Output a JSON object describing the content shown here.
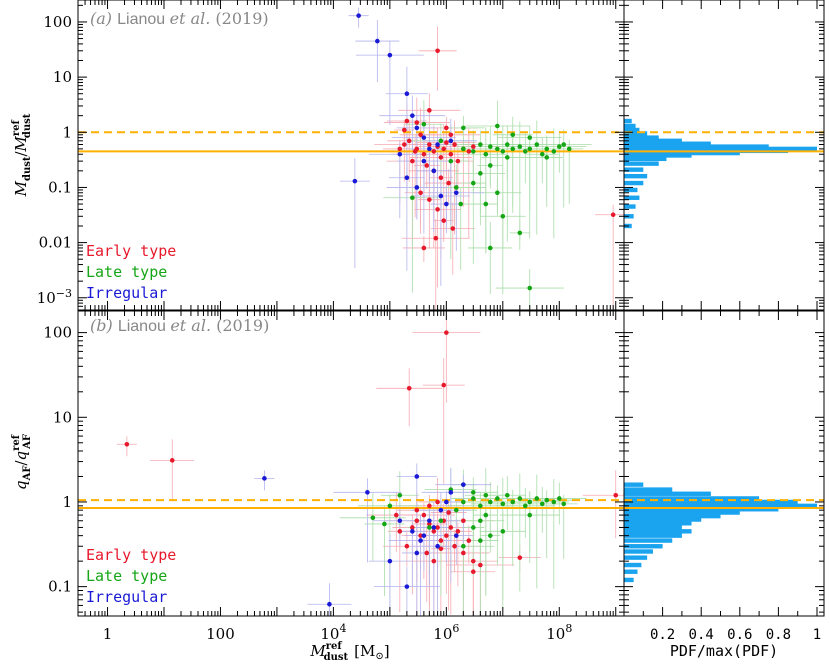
{
  "figure": {
    "xlabel_main": "M",
    "xlabel_sup": "ref",
    "xlabel_sub": "dust",
    "xlabel_unit": "[M",
    "xlabel_unit_sub": "⊙",
    "xlabel_unit_end": "]",
    "right_xlabel": "PDF/max(PDF)"
  },
  "panel_a": {
    "label_prefix": "(a) ",
    "label_name": "Lianou ",
    "label_etal": "et al.",
    "label_year": " (2019)",
    "ylabel_num": "M",
    "ylabel_num_sub": "dust",
    "ylabel_den": "M",
    "ylabel_den_sup": "ref",
    "ylabel_den_sub": "dust",
    "y_ticks": [
      {
        "v": 100,
        "label": "100"
      },
      {
        "v": 10,
        "label": "10"
      },
      {
        "v": 1,
        "label": "1"
      },
      {
        "v": 0.1,
        "label": "0.1"
      },
      {
        "v": 0.01,
        "label": "0.01"
      },
      {
        "v": 0.001,
        "label_base": "10",
        "label_exp": "−3"
      }
    ],
    "legend": [
      {
        "label": "Early type",
        "color": "#e8192c"
      },
      {
        "label": "Late type",
        "color": "#14a614"
      },
      {
        "label": "Irregular",
        "color": "#1a1ad6"
      }
    ]
  },
  "panel_b": {
    "label_prefix": "(b) ",
    "label_name": "Lianou ",
    "label_etal": "et al.",
    "label_year": " (2019)",
    "ylabel_num": "q",
    "ylabel_num_sub": "AF",
    "ylabel_den": "q",
    "ylabel_den_sup": "ref",
    "ylabel_den_sub": "AF",
    "y_ticks": [
      {
        "v": 100,
        "label": "100"
      },
      {
        "v": 10,
        "label": "10"
      },
      {
        "v": 1,
        "label": "1"
      },
      {
        "v": 0.1,
        "label": "0.1"
      }
    ],
    "legend": [
      {
        "label": "Early type",
        "color": "#e8192c"
      },
      {
        "label": "Late type",
        "color": "#14a614"
      },
      {
        "label": "Irregular",
        "color": "#1a1ad6"
      }
    ]
  },
  "x_ticks": [
    {
      "v": 1,
      "label": "1"
    },
    {
      "v": 100,
      "label": "100"
    },
    {
      "v": 10000,
      "label_base": "10",
      "label_exp": "4"
    },
    {
      "v": 1000000,
      "label_base": "10",
      "label_exp": "6"
    },
    {
      "v": 100000000,
      "label_base": "10",
      "label_exp": "8"
    }
  ],
  "pdf_ticks": [
    {
      "v": 0.2,
      "label": "0.2"
    },
    {
      "v": 0.4,
      "label": "0.4"
    },
    {
      "v": 0.6,
      "label": "0.6"
    },
    {
      "v": 0.8,
      "label": "0.8"
    },
    {
      "v": 1.0,
      "label": "1"
    }
  ],
  "chart_data": [
    {
      "type": "scatter",
      "panel": "a",
      "xscale": "log",
      "yscale": "log",
      "xlim": [
        0.3,
        1400000000.0
      ],
      "ylim": [
        0.0006,
        250
      ],
      "colors": {
        "early": "#e8192c",
        "late": "#14a614",
        "irregular": "#1a1ad6",
        "hline_solid": "#ffb000",
        "hline_dashed": "#ffb000"
      },
      "hlines": [
        {
          "y": 0.45,
          "style": "solid"
        },
        {
          "y": 1.0,
          "style": "dashed"
        }
      ],
      "series": [
        {
          "name": "Early type",
          "points": [
            [
              180000.0,
              1.1
            ],
            [
              220000.0,
              0.7
            ],
            [
              300000.0,
              0.5
            ],
            [
              350000.0,
              0.9
            ],
            [
              400000.0,
              0.4
            ],
            [
              500000.0,
              0.6
            ],
            [
              600000.0,
              0.45
            ],
            [
              700000.0,
              0.55
            ],
            [
              800000.0,
              0.35
            ],
            [
              900000.0,
              0.5
            ],
            [
              1000000.0,
              0.65
            ],
            [
              1200000.0,
              0.4
            ],
            [
              1400000.0,
              0.6
            ],
            [
              1600000.0,
              0.3
            ],
            [
              2000000.0,
              0.5
            ],
            [
              2500000.0,
              0.45
            ],
            [
              3000000.0,
              0.55
            ],
            [
              150000.0,
              0.5
            ],
            [
              250000.0,
              0.3
            ],
            [
              450000.0,
              0.25
            ],
            [
              600000.0,
              0.2
            ],
            [
              800000.0,
              0.15
            ],
            [
              1100000.0,
              0.12
            ],
            [
              500000.0,
              0.06
            ],
            [
              700000.0,
              0.04
            ],
            [
              900000.0,
              0.025
            ],
            [
              1300000.0,
              0.018
            ],
            [
              650000.0,
              0.012
            ],
            [
              400000.0,
              0.008
            ],
            [
              300000.0,
              1.5
            ],
            [
              200000.0,
              1.6
            ],
            [
              1000000.0,
              1.2
            ],
            [
              700000.0,
              30
            ],
            [
              500000.0,
              2.5
            ],
            [
              900000000.0,
              0.032
            ],
            [
              180000.0,
              0.6
            ],
            [
              280000.0,
              0.45
            ],
            [
              1200000.0,
              0.9
            ],
            [
              350000.0,
              0.08
            ]
          ]
        },
        {
          "name": "Late type",
          "points": [
            [
              2000000.0,
              0.5
            ],
            [
              3000000.0,
              0.45
            ],
            [
              4000000.0,
              0.6
            ],
            [
              5000000.0,
              0.4
            ],
            [
              6000000.0,
              0.55
            ],
            [
              8000000.0,
              0.5
            ],
            [
              10000000.0,
              0.45
            ],
            [
              12000000.0,
              0.6
            ],
            [
              15000000.0,
              0.5
            ],
            [
              20000000.0,
              0.55
            ],
            [
              25000000.0,
              0.45
            ],
            [
              30000000.0,
              0.5
            ],
            [
              40000000.0,
              0.6
            ],
            [
              50000000.0,
              0.4
            ],
            [
              60000000.0,
              0.5
            ],
            [
              80000000.0,
              0.45
            ],
            [
              100000000.0,
              0.55
            ],
            [
              150000000.0,
              0.5
            ],
            [
              12000000.0,
              0.35
            ],
            [
              6000000.0,
              0.25
            ],
            [
              4000000.0,
              0.18
            ],
            [
              3000000.0,
              0.12
            ],
            [
              8000000.0,
              0.08
            ],
            [
              5000000.0,
              0.05
            ],
            [
              10000000.0,
              0.03
            ],
            [
              20000000.0,
              0.015
            ],
            [
              6000000.0,
              0.008
            ],
            [
              30000000.0,
              0.0015
            ],
            [
              2000000.0,
              1.2
            ],
            [
              8000000.0,
              1.3
            ],
            [
              15000000.0,
              0.9
            ],
            [
              30000000.0,
              0.8
            ],
            [
              400000.0,
              1.4
            ],
            [
              800000.0,
              0.7
            ],
            [
              1200000.0,
              0.3
            ],
            [
              1500000.0,
              0.1
            ],
            [
              1800000.0,
              0.05
            ],
            [
              250000.0,
              0.065
            ],
            [
              60000000.0,
              0.35
            ],
            [
              120000000.0,
              0.6
            ]
          ]
        },
        {
          "name": "Irregular",
          "points": [
            [
              28000.0,
              130
            ],
            [
              60000.0,
              45
            ],
            [
              100000.0,
              25
            ],
            [
              200000.0,
              5
            ],
            [
              250000.0,
              2
            ],
            [
              300000.0,
              1.2
            ],
            [
              400000.0,
              0.8
            ],
            [
              500000.0,
              0.5
            ],
            [
              150000.0,
              0.4
            ],
            [
              200000.0,
              0.15
            ],
            [
              300000.0,
              0.1
            ],
            [
              600000.0,
              0.2
            ],
            [
              800000.0,
              0.07
            ],
            [
              1000000.0,
              0.05
            ],
            [
              1500000.0,
              0.08
            ],
            [
              24000.0,
              0.13
            ],
            [
              400000.0,
              0.3
            ],
            [
              700000.0,
              0.6
            ],
            [
              1200000.0,
              0.7
            ]
          ]
        }
      ],
      "histogram": {
        "type": "bar",
        "orientation": "horizontal",
        "bins_y": [
          0.02,
          0.03,
          0.045,
          0.065,
          0.09,
          0.12,
          0.16,
          0.21,
          0.27,
          0.33,
          0.38,
          0.42,
          0.46,
          0.5,
          0.55,
          0.62,
          0.7,
          0.8,
          0.95,
          1.1,
          1.3,
          1.6
        ],
        "values": [
          0.04,
          0.05,
          0.06,
          0.08,
          0.07,
          0.1,
          0.12,
          0.1,
          0.18,
          0.22,
          0.35,
          0.6,
          0.85,
          1.0,
          0.75,
          0.45,
          0.3,
          0.18,
          0.12,
          0.08,
          0.06,
          0.04
        ]
      }
    },
    {
      "type": "scatter",
      "panel": "b",
      "xscale": "log",
      "yscale": "log",
      "xlim": [
        0.3,
        1400000000.0
      ],
      "ylim": [
        0.045,
        180
      ],
      "colors": {
        "early": "#e8192c",
        "late": "#14a614",
        "irregular": "#1a1ad6",
        "hline_solid": "#ffb000",
        "hline_dashed": "#ffb000"
      },
      "hlines": [
        {
          "y": 0.85,
          "style": "solid"
        },
        {
          "y": 1.05,
          "style": "dashed"
        }
      ],
      "series": [
        {
          "name": "Early type",
          "points": [
            [
              2.2,
              4.8
            ],
            [
              14,
              3.1
            ],
            [
              1000000.0,
              100
            ],
            [
              900000.0,
              24
            ],
            [
              220000.0,
              22
            ],
            [
              250000.0,
              0.5
            ],
            [
              300000.0,
              0.6
            ],
            [
              350000.0,
              0.4
            ],
            [
              400000.0,
              0.7
            ],
            [
              500000.0,
              0.55
            ],
            [
              600000.0,
              0.45
            ],
            [
              700000.0,
              0.5
            ],
            [
              800000.0,
              0.35
            ],
            [
              900000.0,
              0.6
            ],
            [
              1000000.0,
              0.4
            ],
            [
              1200000.0,
              0.5
            ],
            [
              1400000.0,
              0.3
            ],
            [
              1600000.0,
              0.45
            ],
            [
              2000000.0,
              0.25
            ],
            [
              2500000.0,
              0.35
            ],
            [
              3000000.0,
              0.2
            ],
            [
              150000.0,
              0.45
            ],
            [
              200000.0,
              0.3
            ],
            [
              450000.0,
              0.25
            ],
            [
              600000.0,
              0.2
            ],
            [
              800000.0,
              0.28
            ],
            [
              3000000.0,
              0.15
            ],
            [
              4000000.0,
              0.18
            ],
            [
              20000000.0,
              0.22
            ],
            [
              1000000000.0,
              1.2
            ],
            [
              300000.0,
              0.8
            ],
            [
              500000.0,
              0.9
            ],
            [
              700000.0,
              1.0
            ],
            [
              2000000.0,
              0.6
            ],
            [
              1100000.0,
              0.75
            ],
            [
              130000.0,
              0.7
            ]
          ]
        },
        {
          "name": "Late type",
          "points": [
            [
              2000000.0,
              1.0
            ],
            [
              3000000.0,
              1.1
            ],
            [
              4000000.0,
              0.9
            ],
            [
              5000000.0,
              1.2
            ],
            [
              6000000.0,
              1.0
            ],
            [
              8000000.0,
              1.1
            ],
            [
              10000000.0,
              0.95
            ],
            [
              12000000.0,
              1.2
            ],
            [
              15000000.0,
              1.0
            ],
            [
              20000000.0,
              1.1
            ],
            [
              25000000.0,
              0.9
            ],
            [
              30000000.0,
              1.0
            ],
            [
              40000000.0,
              1.1
            ],
            [
              50000000.0,
              0.95
            ],
            [
              60000000.0,
              1.05
            ],
            [
              80000000.0,
              1.0
            ],
            [
              100000000.0,
              1.1
            ],
            [
              120000000.0,
              0.95
            ],
            [
              1200000.0,
              1.4
            ],
            [
              2000000.0,
              1.6
            ],
            [
              3000000.0,
              1.3
            ],
            [
              5000000.0,
              0.7
            ],
            [
              4000000.0,
              0.6
            ],
            [
              3000000.0,
              0.5
            ],
            [
              10000000.0,
              0.45
            ],
            [
              6000000.0,
              0.4
            ],
            [
              500000.0,
              0.5
            ],
            [
              800000.0,
              0.6
            ],
            [
              1500000.0,
              0.8
            ],
            [
              50000.0,
              0.65
            ],
            [
              80000.0,
              0.55
            ],
            [
              100000.0,
              0.9
            ],
            [
              150000.0,
              1.2
            ],
            [
              2000000.0,
              0.3
            ],
            [
              4000000.0,
              0.35
            ],
            [
              30000000.0,
              0.7
            ]
          ]
        },
        {
          "name": "Irregular",
          "points": [
            [
              600,
              1.9
            ],
            [
              8500.0,
              0.062
            ],
            [
              40000.0,
              1.3
            ],
            [
              100000.0,
              0.2
            ],
            [
              200000.0,
              0.1
            ],
            [
              300000.0,
              2.0
            ],
            [
              350000.0,
              0.35
            ],
            [
              400000.0,
              0.4
            ],
            [
              500000.0,
              0.6
            ],
            [
              600000.0,
              0.5
            ],
            [
              800000.0,
              0.8
            ],
            [
              1000000.0,
              1.0
            ],
            [
              1200000.0,
              1.3
            ],
            [
              1500000.0,
              0.4
            ],
            [
              2000000.0,
              1.6
            ],
            [
              300000.0,
              0.25
            ],
            [
              150000.0,
              0.6
            ],
            [
              250000.0,
              0.45
            ],
            [
              700000.0,
              0.3
            ]
          ]
        }
      ],
      "histogram": {
        "type": "bar",
        "orientation": "horizontal",
        "bins_y": [
          0.12,
          0.15,
          0.18,
          0.22,
          0.26,
          0.3,
          0.35,
          0.4,
          0.45,
          0.5,
          0.56,
          0.62,
          0.68,
          0.75,
          0.82,
          0.9,
          1.0,
          1.1,
          1.25,
          1.4,
          1.6
        ],
        "values": [
          0.05,
          0.07,
          0.09,
          0.12,
          0.15,
          0.2,
          0.25,
          0.3,
          0.35,
          0.3,
          0.35,
          0.4,
          0.5,
          0.6,
          0.8,
          1.0,
          0.9,
          0.7,
          0.45,
          0.25,
          0.1
        ]
      }
    }
  ]
}
